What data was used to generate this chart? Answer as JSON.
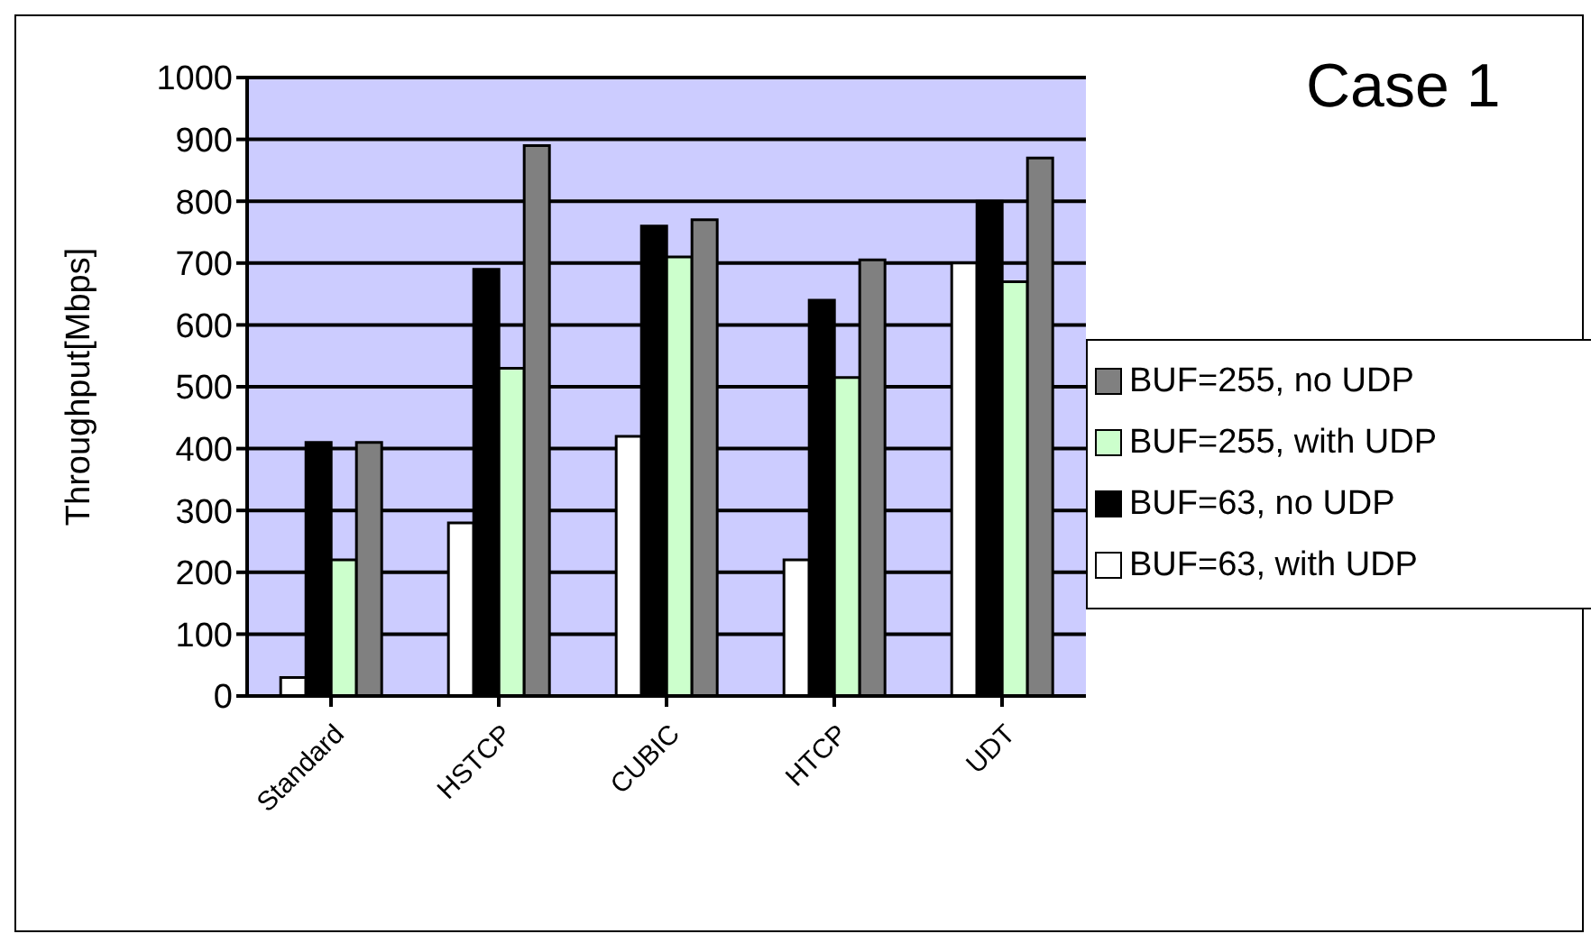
{
  "chart_data": {
    "type": "bar",
    "title": "Case 1",
    "ylabel": "Throughput[Mbps]",
    "categories": [
      "Standard",
      "HSTCP",
      "CUBIC",
      "HTCP",
      "UDT"
    ],
    "series": [
      {
        "name": "BUF=63, with UDP",
        "color": "#ffffff",
        "values": [
          30,
          280,
          420,
          220,
          700
        ]
      },
      {
        "name": "BUF=63, no UDP",
        "color": "#000000",
        "values": [
          410,
          690,
          760,
          640,
          800
        ]
      },
      {
        "name": "BUF=255, with UDP",
        "color": "#ccffcc",
        "values": [
          220,
          530,
          710,
          515,
          670
        ]
      },
      {
        "name": "BUF=255, no UDP",
        "color": "#808080",
        "values": [
          410,
          890,
          770,
          705,
          870
        ]
      }
    ],
    "ylim": [
      0,
      1000
    ],
    "yticks": [
      0,
      100,
      200,
      300,
      400,
      500,
      600,
      700,
      800,
      900,
      1000
    ],
    "grid": "y",
    "legend": "right"
  }
}
